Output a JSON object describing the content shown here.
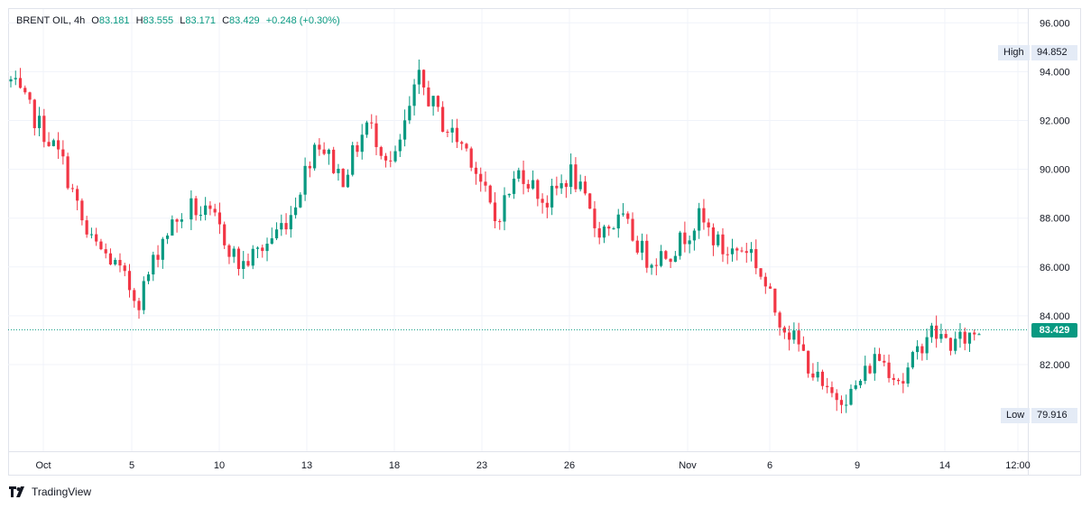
{
  "legend": {
    "symbol": "BRENT OIL, 4h",
    "open_label": "O",
    "open": "83.181",
    "high_label": "H",
    "high": "83.555",
    "low_label": "L",
    "low": "83.171",
    "close_label": "C",
    "close": "83.429",
    "change": "+0.248 (+0.30%)"
  },
  "tags": {
    "high_label": "High",
    "high_value": "94.852",
    "low_label": "Low",
    "low_value": "79.916",
    "last_price": "83.429"
  },
  "footer": {
    "brand": "TradingView"
  },
  "colors": {
    "up": "#089981",
    "down": "#f23645",
    "grid": "#f0f3fa",
    "text": "#131722"
  },
  "chart_data": {
    "type": "candlestick",
    "title": "BRENT OIL, 4h",
    "xlabel": "",
    "ylabel": "",
    "ylim": [
      78.5,
      96.5
    ],
    "y_ticks": [
      "96.000",
      "94.000",
      "92.000",
      "90.000",
      "88.000",
      "86.000",
      "84.000",
      "82.000"
    ],
    "x_ticks": [
      "Oct",
      "5",
      "10",
      "13",
      "18",
      "23",
      "26",
      "Nov",
      "6",
      "9",
      "14",
      "12:00"
    ],
    "grid": true,
    "high": 94.852,
    "low": 79.916,
    "last": 83.429,
    "close_path": [
      {
        "x": "Oct",
        "close": 93.6
      },
      {
        "x": "Oct",
        "close": 92.0
      },
      {
        "x": "Oct",
        "close": 90.4
      },
      {
        "x": "5",
        "close": 87.2
      },
      {
        "x": "5",
        "close": 86.2
      },
      {
        "x": "5",
        "close": 84.6
      },
      {
        "x": "10",
        "close": 87.3
      },
      {
        "x": "10",
        "close": 88.5
      },
      {
        "x": "10",
        "close": 87.9
      },
      {
        "x": "13",
        "close": 86.0
      },
      {
        "x": "13",
        "close": 86.9
      },
      {
        "x": "13",
        "close": 88.2
      },
      {
        "x": "13",
        "close": 91.3
      },
      {
        "x": "18",
        "close": 89.6
      },
      {
        "x": "18",
        "close": 91.9
      },
      {
        "x": "18",
        "close": 90.1
      },
      {
        "x": "23",
        "close": 93.7
      },
      {
        "x": "23",
        "close": 91.8
      },
      {
        "x": "23",
        "close": 90.7
      },
      {
        "x": "26",
        "close": 87.9
      },
      {
        "x": "26",
        "close": 90.0
      },
      {
        "x": "26",
        "close": 88.6
      },
      {
        "x": "26",
        "close": 89.9
      },
      {
        "x": "Nov",
        "close": 87.5
      },
      {
        "x": "Nov",
        "close": 87.9
      },
      {
        "x": "Nov",
        "close": 86.3
      },
      {
        "x": "Nov",
        "close": 86.7
      },
      {
        "x": "6",
        "close": 88.0
      },
      {
        "x": "6",
        "close": 86.6
      },
      {
        "x": "6",
        "close": 86.8
      },
      {
        "x": "6",
        "close": 84.2
      },
      {
        "x": "9",
        "close": 82.6
      },
      {
        "x": "9",
        "close": 80.7
      },
      {
        "x": "9",
        "close": 80.8
      },
      {
        "x": "9",
        "close": 82.4
      },
      {
        "x": "14",
        "close": 81.3
      },
      {
        "x": "14",
        "close": 83.4
      },
      {
        "x": "14",
        "close": 82.8
      },
      {
        "x": "14",
        "close": 83.429
      }
    ]
  }
}
